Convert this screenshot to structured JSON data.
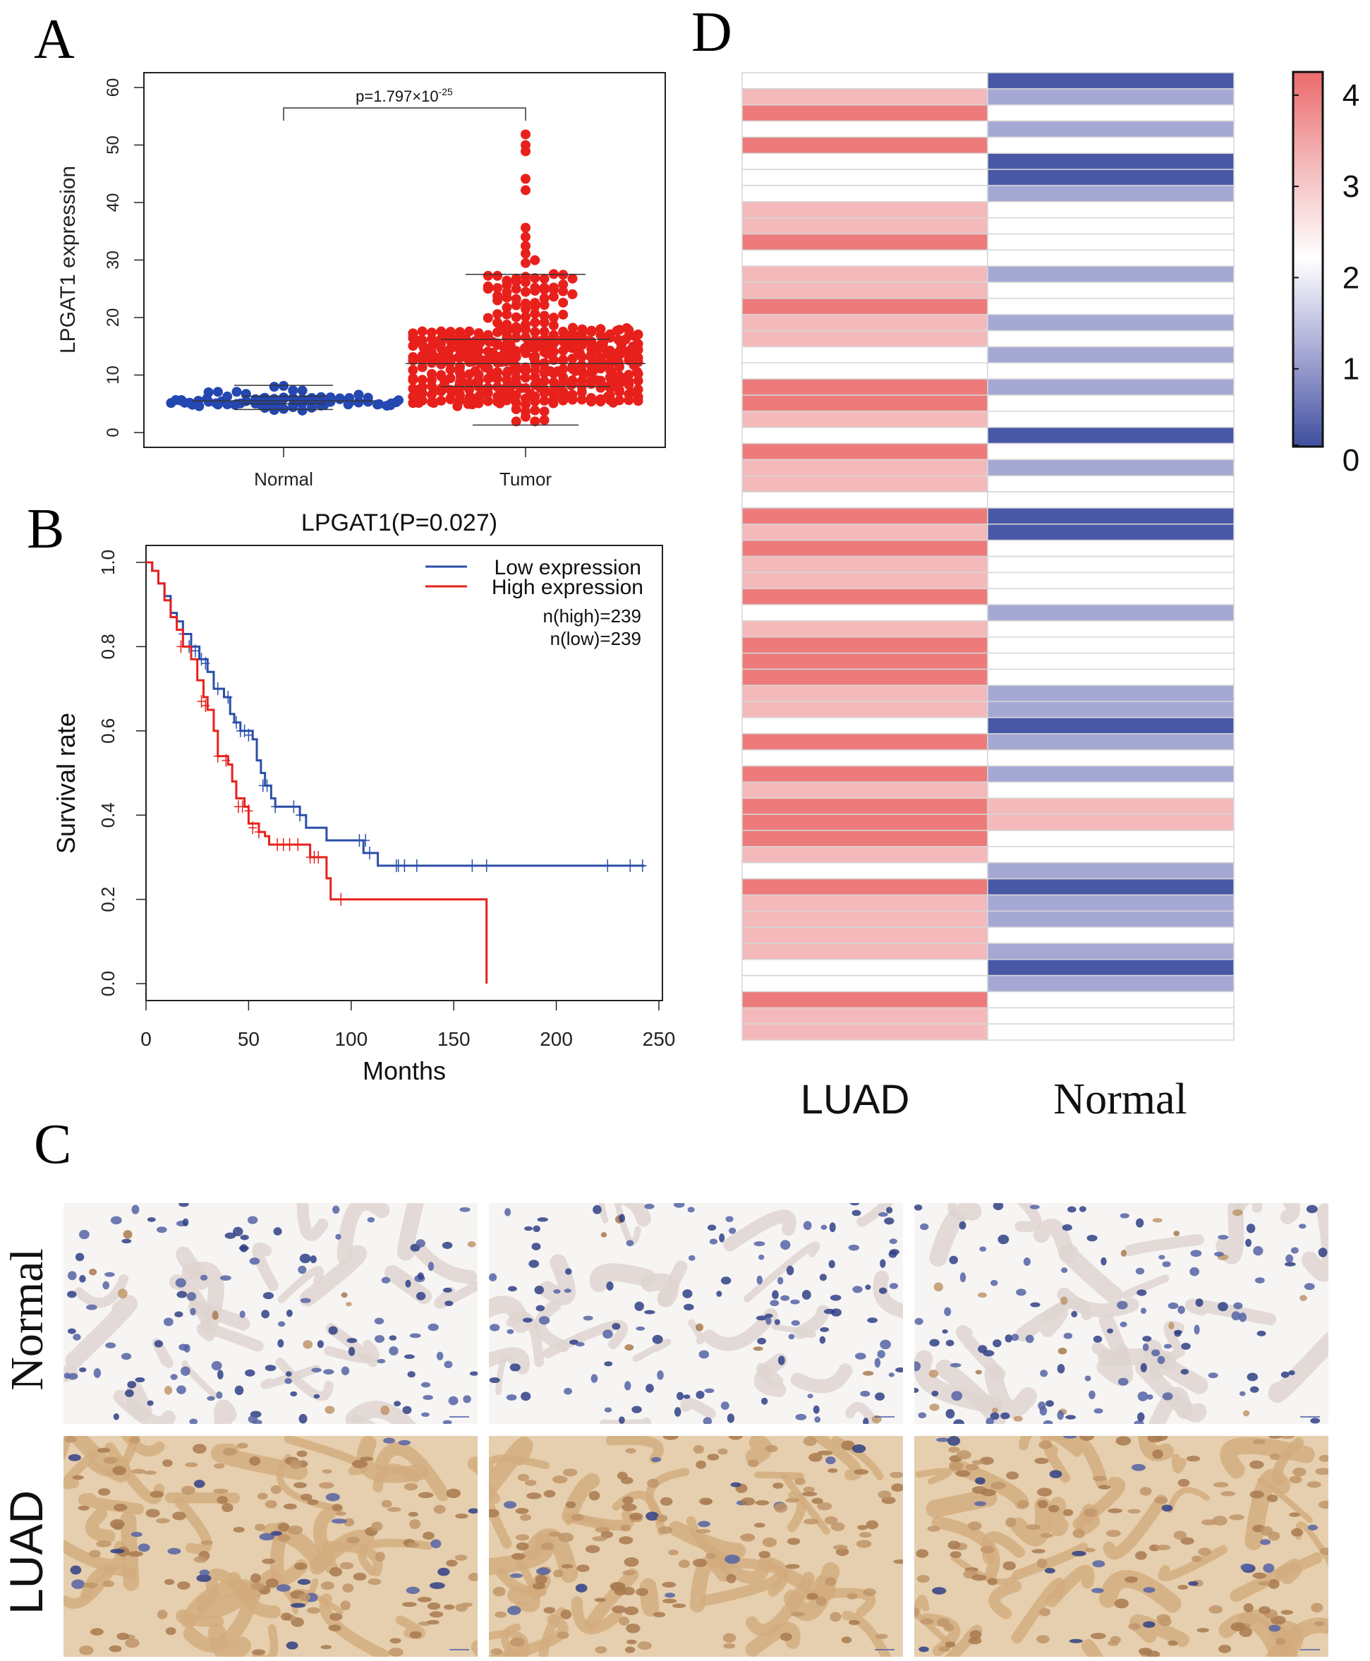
{
  "panel_labels": {
    "a": "A",
    "b": "B",
    "c": "C",
    "d": "D"
  },
  "colors": {
    "normal": "#2447b0",
    "tumor": "#e8201c",
    "low": "#2a4ea8",
    "high": "#e8201c",
    "heat_0": "#4858a6",
    "heat_1": "#a6a8d4",
    "heat_2": "#ffffff",
    "heat_3": "#f4babb",
    "heat_4": "#ed7b7b"
  },
  "chart_data": [
    {
      "id": "A",
      "type": "scatter",
      "subtype": "beeswarm",
      "ylabel": "LPGAT1 expression",
      "categories": [
        "Normal",
        "Tumor"
      ],
      "ylim": [
        0,
        60
      ],
      "yticks": [
        "0",
        "10",
        "20",
        "30",
        "40",
        "50",
        "60"
      ],
      "annotation": {
        "base": "p=1.797×10",
        "exponent": "-25"
      },
      "groups": [
        {
          "name": "Normal",
          "min": 4,
          "q1": 5.0,
          "median": 5.5,
          "q3": 6.3,
          "max": 8.2
        },
        {
          "name": "Tumor",
          "min": 1.3,
          "q1": 8,
          "median": 12,
          "q3": 16.2,
          "max": 27.5,
          "outliers": [
            29.5,
            30,
            31,
            32.5,
            34,
            35.5,
            42,
            44,
            49,
            50,
            52
          ]
        }
      ]
    },
    {
      "id": "B",
      "type": "line",
      "subtype": "kaplan-meier",
      "title": "LPGAT1(P=0.027)",
      "xlabel": "Months",
      "ylabel": "Survival rate",
      "xlim": [
        0,
        250
      ],
      "ylim": [
        0,
        1
      ],
      "xticks": [
        "0",
        "50",
        "100",
        "150",
        "200",
        "250"
      ],
      "yticks": [
        "0.0",
        "0.2",
        "0.4",
        "0.6",
        "0.8",
        "1.0"
      ],
      "legend_position": "top-right",
      "annotations": [
        "n(high)=239",
        "n(low)=239"
      ],
      "series": [
        {
          "name": "Low expression",
          "steps": [
            [
              0,
              1
            ],
            [
              3,
              0.98
            ],
            [
              6,
              0.95
            ],
            [
              9,
              0.92
            ],
            [
              12,
              0.88
            ],
            [
              15,
              0.86
            ],
            [
              18,
              0.83
            ],
            [
              22,
              0.8
            ],
            [
              26,
              0.77
            ],
            [
              30,
              0.74
            ],
            [
              33,
              0.7
            ],
            [
              38,
              0.68
            ],
            [
              41,
              0.64
            ],
            [
              43,
              0.62
            ],
            [
              46,
              0.6
            ],
            [
              52,
              0.58
            ],
            [
              54,
              0.53
            ],
            [
              56,
              0.5
            ],
            [
              58,
              0.47
            ],
            [
              61,
              0.44
            ],
            [
              63,
              0.42
            ],
            [
              75,
              0.4
            ],
            [
              78,
              0.37
            ],
            [
              88,
              0.34
            ],
            [
              106,
              0.31
            ],
            [
              113,
              0.28
            ],
            [
              243,
              0.28
            ]
          ],
          "censored": [
            [
              18,
              0.83
            ],
            [
              21,
              0.8
            ],
            [
              24,
              0.79
            ],
            [
              27,
              0.77
            ],
            [
              29,
              0.76
            ],
            [
              35,
              0.7
            ],
            [
              40,
              0.68
            ],
            [
              44,
              0.62
            ],
            [
              46,
              0.6
            ],
            [
              48,
              0.6
            ],
            [
              50,
              0.59
            ],
            [
              57,
              0.47
            ],
            [
              59,
              0.47
            ],
            [
              63,
              0.42
            ],
            [
              72,
              0.42
            ],
            [
              75,
              0.4
            ],
            [
              104,
              0.34
            ],
            [
              107,
              0.34
            ],
            [
              109,
              0.31
            ],
            [
              122,
              0.28
            ],
            [
              123,
              0.28
            ],
            [
              126,
              0.28
            ],
            [
              132,
              0.28
            ],
            [
              159,
              0.28
            ],
            [
              166,
              0.28
            ],
            [
              225,
              0.28
            ],
            [
              236,
              0.28
            ],
            [
              242,
              0.28
            ]
          ]
        },
        {
          "name": "High expression",
          "steps": [
            [
              0,
              1
            ],
            [
              3,
              0.98
            ],
            [
              6,
              0.95
            ],
            [
              9,
              0.91
            ],
            [
              12,
              0.87
            ],
            [
              15,
              0.84
            ],
            [
              18,
              0.8
            ],
            [
              22,
              0.77
            ],
            [
              25,
              0.72
            ],
            [
              28,
              0.68
            ],
            [
              30,
              0.65
            ],
            [
              33,
              0.6
            ],
            [
              35,
              0.54
            ],
            [
              40,
              0.52
            ],
            [
              42,
              0.48
            ],
            [
              44,
              0.44
            ],
            [
              48,
              0.42
            ],
            [
              50,
              0.38
            ],
            [
              55,
              0.36
            ],
            [
              58,
              0.35
            ],
            [
              60,
              0.33
            ],
            [
              80,
              0.3
            ],
            [
              88,
              0.25
            ],
            [
              90,
              0.2
            ],
            [
              166,
              0.2
            ],
            [
              166,
              0
            ]
          ],
          "censored": [
            [
              17,
              0.8
            ],
            [
              27,
              0.67
            ],
            [
              29,
              0.66
            ],
            [
              35,
              0.54
            ],
            [
              39,
              0.53
            ],
            [
              45,
              0.42
            ],
            [
              47,
              0.42
            ],
            [
              50,
              0.41
            ],
            [
              52,
              0.37
            ],
            [
              55,
              0.36
            ],
            [
              64,
              0.33
            ],
            [
              67,
              0.33
            ],
            [
              70,
              0.33
            ],
            [
              74,
              0.33
            ],
            [
              80,
              0.3
            ],
            [
              82,
              0.3
            ],
            [
              84,
              0.3
            ],
            [
              95,
              0.2
            ]
          ]
        }
      ]
    },
    {
      "id": "D",
      "type": "heatmap",
      "columns": [
        "LUAD",
        "Normal"
      ],
      "colorbar": {
        "min": 0,
        "max": 4,
        "ticks": [
          "0",
          "1",
          "2",
          "3",
          "4"
        ]
      },
      "values": [
        [
          2,
          0
        ],
        [
          3,
          1
        ],
        [
          4,
          2
        ],
        [
          2,
          1
        ],
        [
          4,
          2
        ],
        [
          2,
          0
        ],
        [
          2,
          0
        ],
        [
          2,
          1
        ],
        [
          3,
          2
        ],
        [
          3,
          2
        ],
        [
          4,
          2
        ],
        [
          2,
          2
        ],
        [
          3,
          1
        ],
        [
          3,
          2
        ],
        [
          4,
          2
        ],
        [
          3,
          1
        ],
        [
          3,
          2
        ],
        [
          2,
          1
        ],
        [
          2,
          2
        ],
        [
          4,
          1
        ],
        [
          4,
          2
        ],
        [
          3,
          2
        ],
        [
          2,
          0
        ],
        [
          4,
          2
        ],
        [
          3,
          1
        ],
        [
          3,
          2
        ],
        [
          2,
          2
        ],
        [
          4,
          0
        ],
        [
          3,
          0
        ],
        [
          4,
          2
        ],
        [
          3,
          2
        ],
        [
          3,
          2
        ],
        [
          4,
          2
        ],
        [
          2,
          1
        ],
        [
          3,
          2
        ],
        [
          4,
          2
        ],
        [
          4,
          2
        ],
        [
          4,
          2
        ],
        [
          3,
          1
        ],
        [
          3,
          1
        ],
        [
          2,
          0
        ],
        [
          4,
          1
        ],
        [
          2,
          2
        ],
        [
          4,
          1
        ],
        [
          3,
          2
        ],
        [
          4,
          3
        ],
        [
          4,
          3
        ],
        [
          4,
          2
        ],
        [
          3,
          2
        ],
        [
          2,
          1
        ],
        [
          4,
          0
        ],
        [
          3,
          1
        ],
        [
          3,
          1
        ],
        [
          3,
          2
        ],
        [
          3,
          1
        ],
        [
          2,
          0
        ],
        [
          2,
          1
        ],
        [
          4,
          2
        ],
        [
          3,
          2
        ],
        [
          3,
          2
        ]
      ]
    }
  ],
  "ihc": {
    "row_labels": [
      "Normal",
      "LUAD"
    ],
    "images_per_row": 3
  }
}
